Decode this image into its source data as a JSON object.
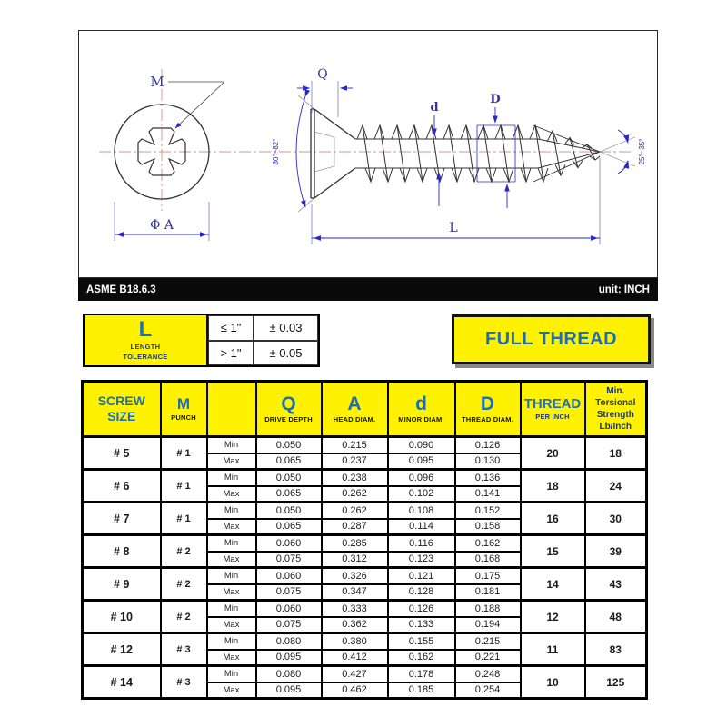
{
  "colors": {
    "accent_yellow": "#FFF200",
    "header_blue": "#1E6DB8",
    "navy": "#203864",
    "dimension_blue": "#2727CC",
    "bar_black": "#0A0A0A"
  },
  "drawing": {
    "labels": {
      "punch_ref": "M",
      "head_diam": "Φ A",
      "drive_depth": "Q",
      "minor_diam": "d",
      "major_diam": "D",
      "length": "L",
      "head_angle": "80°~82°",
      "point_angle": "25°~35°"
    }
  },
  "title_bar": {
    "standard": "ASME B18.6.3",
    "unit": "unit: INCH"
  },
  "tolerance_box": {
    "symbol": "L",
    "label": "LENGTH\nTOLERANCE",
    "rows": [
      {
        "condition": "≤ 1\"",
        "tolerance": "± 0.03"
      },
      {
        "condition": "> 1\"",
        "tolerance": "± 0.05"
      }
    ]
  },
  "full_thread_label": "FULL THREAD",
  "table": {
    "min_label": "Min",
    "max_label": "Max",
    "headers": {
      "screw_size": "SCREW\nSIZE",
      "punch": {
        "symbol": "M",
        "sub": "PUNCH"
      },
      "drive_depth": {
        "symbol": "Q",
        "sub": "DRIVE DEPTH"
      },
      "head_diam": {
        "symbol": "A",
        "sub": "HEAD DIAM."
      },
      "minor_diam": {
        "symbol": "d",
        "sub": "MINOR DIAM."
      },
      "thread_diam": {
        "symbol": "D",
        "sub": "THREAD DIAM."
      },
      "thread_per_inch": {
        "symbol": "THREAD",
        "sub": "PER INCH"
      },
      "torsional": "Min.\nTorsional\nStrength\nLb/Inch"
    },
    "rows": [
      {
        "size": "# 5",
        "punch": "# 1",
        "min": [
          "0.050",
          "0.215",
          "0.090",
          "0.126"
        ],
        "max": [
          "0.065",
          "0.237",
          "0.095",
          "0.130"
        ],
        "tpi": "20",
        "strength": "18"
      },
      {
        "size": "# 6",
        "punch": "# 1",
        "min": [
          "0.050",
          "0.238",
          "0.096",
          "0.136"
        ],
        "max": [
          "0.065",
          "0.262",
          "0.102",
          "0.141"
        ],
        "tpi": "18",
        "strength": "24"
      },
      {
        "size": "# 7",
        "punch": "# 1",
        "min": [
          "0.050",
          "0.262",
          "0.108",
          "0.152"
        ],
        "max": [
          "0.065",
          "0.287",
          "0.114",
          "0.158"
        ],
        "tpi": "16",
        "strength": "30"
      },
      {
        "size": "# 8",
        "punch": "# 2",
        "min": [
          "0.060",
          "0.285",
          "0.116",
          "0.162"
        ],
        "max": [
          "0.075",
          "0.312",
          "0.123",
          "0.168"
        ],
        "tpi": "15",
        "strength": "39"
      },
      {
        "size": "# 9",
        "punch": "# 2",
        "min": [
          "0.060",
          "0.326",
          "0.121",
          "0.175"
        ],
        "max": [
          "0.075",
          "0.347",
          "0.128",
          "0.181"
        ],
        "tpi": "14",
        "strength": "43"
      },
      {
        "size": "# 10",
        "punch": "# 2",
        "min": [
          "0.060",
          "0.333",
          "0.126",
          "0.188"
        ],
        "max": [
          "0.075",
          "0.362",
          "0.133",
          "0.194"
        ],
        "tpi": "12",
        "strength": "48"
      },
      {
        "size": "# 12",
        "punch": "# 3",
        "min": [
          "0.080",
          "0.380",
          "0.155",
          "0.215"
        ],
        "max": [
          "0.095",
          "0.412",
          "0.162",
          "0.221"
        ],
        "tpi": "11",
        "strength": "83"
      },
      {
        "size": "# 14",
        "punch": "# 3",
        "min": [
          "0.080",
          "0.427",
          "0.178",
          "0.248"
        ],
        "max": [
          "0.095",
          "0.462",
          "0.185",
          "0.254"
        ],
        "tpi": "10",
        "strength": "125"
      }
    ]
  }
}
